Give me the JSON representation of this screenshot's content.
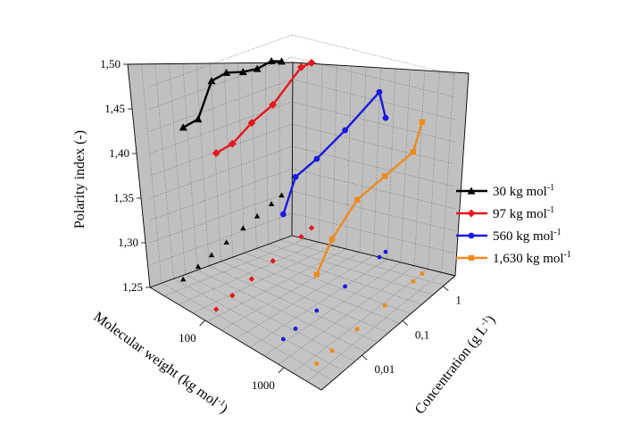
{
  "chart_data": {
    "type": "scatter",
    "projection": "3d",
    "ylabel": "Polarity index (-)",
    "xlabel": "Molecular weight (kg mol",
    "xlabel_sup": "-1",
    "xlabel_end": ")",
    "zlabel": "Concentration (g L",
    "zlabel_sup": "-1",
    "zlabel_end": ")",
    "ylim": [
      1.25,
      1.5
    ],
    "y_ticks": [
      "1,25",
      "1,30",
      "1,35",
      "1,40",
      "1,45",
      "1,50"
    ],
    "x_ticks": [
      "100",
      "1000"
    ],
    "z_ticks": [
      "0,01",
      "0,1",
      "1"
    ],
    "grid": true,
    "legend_position": "right",
    "series": [
      {
        "name": "30 kg mol",
        "name_sup": "-1",
        "color": "#000000",
        "marker": "triangle",
        "mw": 30,
        "concentration": [
          0.003,
          0.007,
          0.015,
          0.035,
          0.09,
          0.2,
          0.45,
          0.8
        ],
        "polarity": [
          1.42,
          1.415,
          1.445,
          1.44,
          1.425,
          1.415,
          1.41,
          1.4
        ]
      },
      {
        "name": "97 kg mol",
        "name_sup": "-1",
        "color": "#e8161c",
        "marker": "diamond",
        "mw": 97,
        "concentration": [
          0.002,
          0.005,
          0.015,
          0.05,
          0.25,
          0.45
        ],
        "polarity": [
          1.425,
          1.42,
          1.425,
          1.425,
          1.44,
          1.435
        ]
      },
      {
        "name": "560 kg mol",
        "name_sup": "-1",
        "color": "#1a1ae0",
        "marker": "circle",
        "mw": 560,
        "concentration": [
          0.003,
          0.006,
          0.02,
          0.1,
          0.7,
          1.0
        ],
        "polarity": [
          1.39,
          1.42,
          1.42,
          1.425,
          1.435,
          1.4
        ]
      },
      {
        "name": "1,630 kg mol",
        "name_sup": "-1",
        "color": "#f08a1c",
        "marker": "square",
        "mw": 1630,
        "concentration": [
          0.0025,
          0.006,
          0.025,
          0.12,
          0.6,
          1.0
        ],
        "polarity": [
          1.35,
          1.375,
          1.395,
          1.395,
          1.395,
          1.42
        ]
      }
    ]
  }
}
